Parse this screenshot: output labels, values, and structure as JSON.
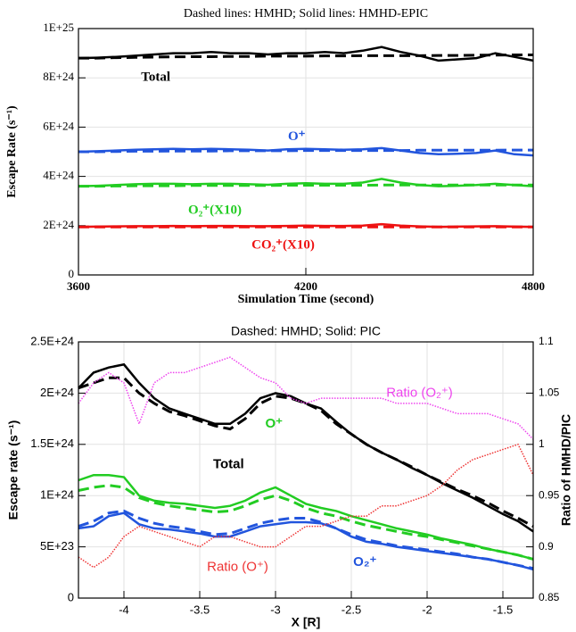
{
  "chart_data": [
    {
      "type": "line",
      "title": "Dashed lines: HMHD; Solid lines: HMHD-EPIC",
      "xlabel": "Simulation Time (second)",
      "ylabel": "Escape Rate (s⁻¹)",
      "x": [
        3600,
        3650,
        3700,
        3750,
        3800,
        3850,
        3900,
        3950,
        4000,
        4050,
        4100,
        4150,
        4200,
        4250,
        4300,
        4350,
        4400,
        4450,
        4500,
        4550,
        4600,
        4650,
        4700,
        4750,
        4800
      ],
      "xlim": [
        3600,
        4800
      ],
      "xticks": [
        3600,
        4200,
        4800
      ],
      "ylim": [
        0,
        1e+25
      ],
      "yticks": [
        0,
        {
          "value": 2e+24,
          "label": "2E+24"
        },
        {
          "value": 4e+24,
          "label": "4E+24"
        },
        {
          "value": 6e+24,
          "label": "6E+24"
        },
        {
          "value": 8e+24,
          "label": "8E+24"
        },
        {
          "value": 1e+25,
          "label": "1E+25"
        }
      ],
      "grid": true,
      "series": [
        {
          "name": "Total",
          "color": "#000000",
          "values": [
            8.8e+24,
            8.82e+24,
            8.85e+24,
            8.9e+24,
            8.95e+24,
            9e+24,
            9e+24,
            9.05e+24,
            9e+24,
            9e+24,
            8.95e+24,
            9e+24,
            9e+24,
            9.05e+24,
            9e+24,
            9.1e+24,
            9.25e+24,
            9.05e+24,
            8.9e+24,
            8.7e+24,
            8.75e+24,
            8.8e+24,
            9e+24,
            8.85e+24,
            8.7e+24
          ],
          "dashed": [
            8.8e+24,
            8.8e+24,
            8.82e+24,
            8.83e+24,
            8.84e+24,
            8.85e+24,
            8.86e+24,
            8.86e+24,
            8.87e+24,
            8.87e+24,
            8.88e+24,
            8.88e+24,
            8.88e+24,
            8.89e+24,
            8.89e+24,
            8.9e+24,
            8.9e+24,
            8.9e+24,
            8.9e+24,
            8.91e+24,
            8.91e+24,
            8.92e+24,
            8.92e+24,
            8.93e+24,
            8.93e+24
          ]
        },
        {
          "name": "O⁺",
          "color": "#2255dd",
          "values": [
            5e+24,
            5.02e+24,
            5.05e+24,
            5.08e+24,
            5.1e+24,
            5.12e+24,
            5.1e+24,
            5.12e+24,
            5.1e+24,
            5.08e+24,
            5.05e+24,
            5.1e+24,
            5.12e+24,
            5.1e+24,
            5.08e+24,
            5.1e+24,
            5.15e+24,
            5.05e+24,
            4.95e+24,
            4.9e+24,
            4.92e+24,
            4.95e+24,
            5.05e+24,
            4.9e+24,
            4.85e+24
          ],
          "dashed": [
            5e+24,
            5e+24,
            5.01e+24,
            5.02e+24,
            5.02e+24,
            5.03e+24,
            5.03e+24,
            5.03e+24,
            5.04e+24,
            5.04e+24,
            5.04e+24,
            5.04e+24,
            5.05e+24,
            5.05e+24,
            5.05e+24,
            5.05e+24,
            5.05e+24,
            5.05e+24,
            5.06e+24,
            5.06e+24,
            5.06e+24,
            5.06e+24,
            5.06e+24,
            5.07e+24,
            5.07e+24
          ]
        },
        {
          "name": "O₂⁺(X10)",
          "color": "#22cc22",
          "values": [
            3.6e+24,
            3.62e+24,
            3.65e+24,
            3.68e+24,
            3.7e+24,
            3.7e+24,
            3.68e+24,
            3.7e+24,
            3.7e+24,
            3.68e+24,
            3.66e+24,
            3.7e+24,
            3.72e+24,
            3.7e+24,
            3.7e+24,
            3.75e+24,
            3.9e+24,
            3.75e+24,
            3.65e+24,
            3.6e+24,
            3.62e+24,
            3.65e+24,
            3.7e+24,
            3.65e+24,
            3.6e+24
          ],
          "dashed": [
            3.6e+24,
            3.6e+24,
            3.61e+24,
            3.62e+24,
            3.62e+24,
            3.62e+24,
            3.63e+24,
            3.63e+24,
            3.63e+24,
            3.63e+24,
            3.63e+24,
            3.64e+24,
            3.64e+24,
            3.64e+24,
            3.64e+24,
            3.64e+24,
            3.65e+24,
            3.65e+24,
            3.65e+24,
            3.65e+24,
            3.65e+24,
            3.65e+24,
            3.65e+24,
            3.65e+24,
            3.65e+24
          ]
        },
        {
          "name": "CO₂⁺(X10)",
          "color": "#ee1111",
          "values": [
            1.95e+24,
            1.96e+24,
            1.97e+24,
            1.98e+24,
            1.98e+24,
            1.99e+24,
            1.98e+24,
            1.99e+24,
            1.99e+24,
            1.98e+24,
            1.98e+24,
            1.99e+24,
            2e+24,
            1.99e+24,
            1.99e+24,
            2e+24,
            2.06e+24,
            2e+24,
            1.97e+24,
            1.95e+24,
            1.96e+24,
            1.97e+24,
            1.98e+24,
            1.96e+24,
            1.95e+24
          ],
          "dashed": [
            1.95e+24,
            1.95e+24,
            1.95e+24,
            1.95e+24,
            1.95e+24,
            1.95e+24,
            1.95e+24,
            1.95e+24,
            1.95e+24,
            1.95e+24,
            1.95e+24,
            1.95e+24,
            1.95e+24,
            1.95e+24,
            1.95e+24,
            1.95e+24,
            1.95e+24,
            1.95e+24,
            1.95e+24,
            1.95e+24,
            1.95e+24,
            1.95e+24,
            1.95e+24,
            1.95e+24,
            1.95e+24
          ]
        }
      ]
    },
    {
      "type": "line",
      "title": "Dashed: HMHD; Solid: PIC",
      "xlabel": "X [R]",
      "ylabel": "Escape rate (s⁻¹)",
      "y2label": "Ratio of HMHD/PIC",
      "x": [
        -4.3,
        -4.2,
        -4.1,
        -4.0,
        -3.9,
        -3.8,
        -3.7,
        -3.6,
        -3.5,
        -3.4,
        -3.3,
        -3.2,
        -3.1,
        -3.0,
        -2.9,
        -2.8,
        -2.7,
        -2.6,
        -2.5,
        -2.4,
        -2.3,
        -2.2,
        -2.1,
        -2.0,
        -1.9,
        -1.8,
        -1.7,
        -1.6,
        -1.5,
        -1.4,
        -1.3
      ],
      "xlim": [
        -4.3,
        -1.3
      ],
      "xticks": [
        -4,
        -3.5,
        -3,
        -2.5,
        -2,
        -1.5
      ],
      "ylim": [
        0,
        2.5e+24
      ],
      "yticks": [
        0,
        {
          "value": 5e+23,
          "label": "5E+23"
        },
        {
          "value": 1e+24,
          "label": "1E+24"
        },
        {
          "value": 1.5e+24,
          "label": "1.5E+24"
        },
        {
          "value": 2e+24,
          "label": "2E+24"
        },
        {
          "value": 2.5e+24,
          "label": "2.5E+24"
        }
      ],
      "y2lim": [
        0.85,
        1.1
      ],
      "y2ticks": [
        0.85,
        0.9,
        0.95,
        1,
        1.05,
        1.1
      ],
      "grid": true,
      "series": [
        {
          "name": "Total",
          "color": "#000000",
          "values": [
            2.05e+24,
            2.2e+24,
            2.25e+24,
            2.28e+24,
            2.1e+24,
            1.95e+24,
            1.85e+24,
            1.8e+24,
            1.75e+24,
            1.7e+24,
            1.7e+24,
            1.8e+24,
            1.95e+24,
            2e+24,
            1.97e+24,
            1.9e+24,
            1.85e+24,
            1.72e+24,
            1.6e+24,
            1.5e+24,
            1.42e+24,
            1.35e+24,
            1.27e+24,
            1.2e+24,
            1.12e+24,
            1.05e+24,
            9.8e+23,
            9e+23,
            8.2e+23,
            7.5e+23,
            6.5e+23
          ],
          "dashed": [
            2.05e+24,
            2.1e+24,
            2.15e+24,
            2.15e+24,
            2e+24,
            1.9e+24,
            1.82e+24,
            1.78e+24,
            1.73e+24,
            1.68e+24,
            1.65e+24,
            1.75e+24,
            1.9e+24,
            1.97e+24,
            1.95e+24,
            1.9e+24,
            1.83e+24,
            1.7e+24,
            1.6e+24,
            1.5e+24,
            1.42e+24,
            1.35e+24,
            1.28e+24,
            1.2e+24,
            1.13e+24,
            1.06e+24,
            1e+24,
            9.3e+23,
            8.5e+23,
            7.8e+23,
            7e+23
          ]
        },
        {
          "name": "O⁺",
          "color": "#22cc22",
          "values": [
            1.15e+24,
            1.2e+24,
            1.2e+24,
            1.18e+24,
            1e+24,
            9.5e+23,
            9.3e+23,
            9.2e+23,
            9e+23,
            8.8e+23,
            9e+23,
            9.5e+23,
            1.03e+24,
            1.08e+24,
            1e+24,
            9.2e+23,
            8.8e+23,
            8.5e+23,
            8e+23,
            7.6e+23,
            7.2e+23,
            6.8e+23,
            6.5e+23,
            6.2e+23,
            5.8e+23,
            5.5e+23,
            5.2e+23,
            4.8e+23,
            4.5e+23,
            4.2e+23,
            3.8e+23
          ],
          "dashed": [
            1.05e+24,
            1.08e+24,
            1.1e+24,
            1.08e+24,
            9.8e+23,
            9.3e+23,
            9e+23,
            8.8e+23,
            8.6e+23,
            8.4e+23,
            8.5e+23,
            9e+23,
            9.6e+23,
            1e+24,
            9.5e+23,
            8.8e+23,
            8.3e+23,
            8e+23,
            7.5e+23,
            7.1e+23,
            6.8e+23,
            6.5e+23,
            6.2e+23,
            6e+23,
            5.7e+23,
            5.4e+23,
            5.1e+23,
            4.8e+23,
            4.5e+23,
            4.2e+23,
            3.8e+23
          ]
        },
        {
          "name": "O₂⁺",
          "color": "#2255dd",
          "values": [
            6.8e+23,
            7e+23,
            8e+23,
            8.3e+23,
            7.2e+23,
            6.8e+23,
            6.7e+23,
            6.5e+23,
            6.3e+23,
            6e+23,
            6e+23,
            6.5e+23,
            7e+23,
            7.2e+23,
            7.4e+23,
            7.4e+23,
            7.3e+23,
            6.8e+23,
            6e+23,
            5.5e+23,
            5.3e+23,
            5e+23,
            4.8e+23,
            4.6e+23,
            4.4e+23,
            4.2e+23,
            4e+23,
            3.8e+23,
            3.5e+23,
            3.2e+23,
            2.8e+23
          ],
          "dashed": [
            7e+23,
            7.5e+23,
            8.3e+23,
            8.5e+23,
            7.8e+23,
            7.3e+23,
            7e+23,
            6.8e+23,
            6.5e+23,
            6.2e+23,
            6.3e+23,
            6.8e+23,
            7.3e+23,
            7.6e+23,
            7.8e+23,
            7.8e+23,
            7.4e+23,
            6.8e+23,
            6.2e+23,
            5.7e+23,
            5.4e+23,
            5.1e+23,
            4.9e+23,
            4.7e+23,
            4.5e+23,
            4.3e+23,
            4e+23,
            3.8e+23,
            3.5e+23,
            3.2e+23,
            2.9e+23
          ]
        },
        {
          "name": "Ratio (O₂⁺)",
          "color": "#ee44ee",
          "axis": "y2",
          "line_style": "dotted",
          "values": [
            1.04,
            1.06,
            1.07,
            1.06,
            1.02,
            1.06,
            1.07,
            1.07,
            1.075,
            1.08,
            1.085,
            1.075,
            1.065,
            1.06,
            1.045,
            1.04,
            1.045,
            1.045,
            1.045,
            1.045,
            1.045,
            1.04,
            1.04,
            1.04,
            1.035,
            1.03,
            1.03,
            1.03,
            1.025,
            1.02,
            1.005
          ]
        },
        {
          "name": "Ratio (O⁺)",
          "color": "#ee3333",
          "axis": "y2",
          "line_style": "dotted",
          "values": [
            0.89,
            0.88,
            0.89,
            0.91,
            0.92,
            0.915,
            0.91,
            0.905,
            0.9,
            0.91,
            0.91,
            0.905,
            0.9,
            0.9,
            0.91,
            0.92,
            0.92,
            0.925,
            0.93,
            0.93,
            0.94,
            0.94,
            0.945,
            0.95,
            0.96,
            0.975,
            0.985,
            0.99,
            0.995,
            1.0,
            0.97
          ]
        }
      ]
    }
  ]
}
